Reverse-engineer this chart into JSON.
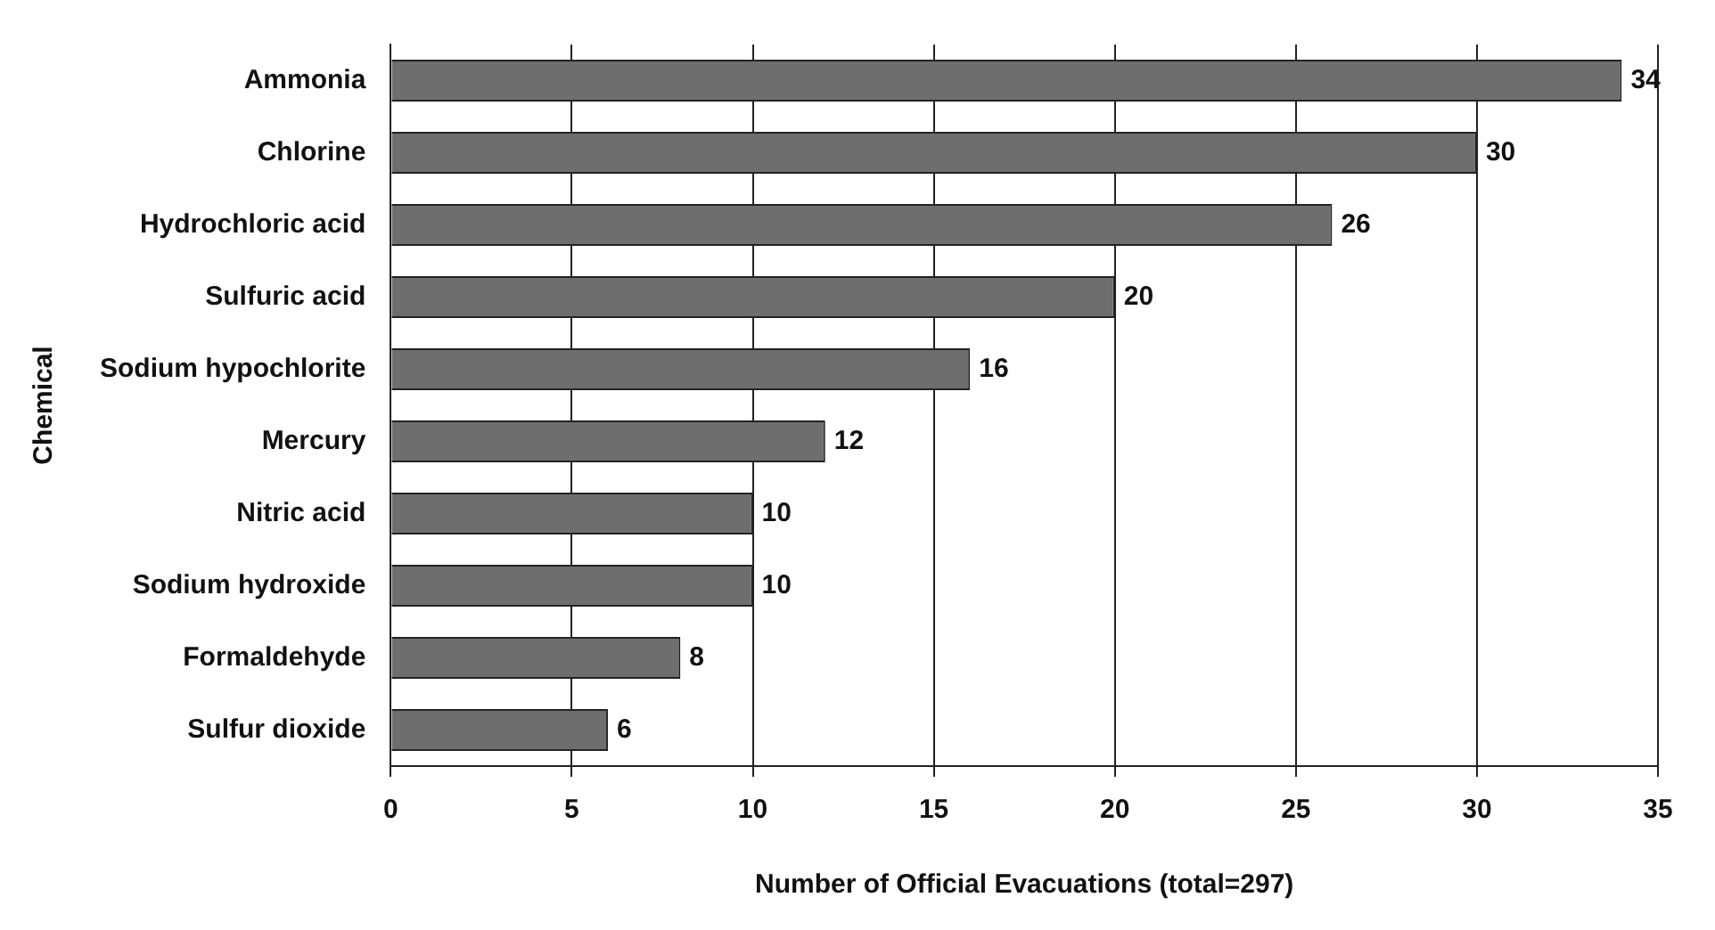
{
  "chart_data": {
    "type": "bar",
    "orientation": "horizontal",
    "xlabel": "Number of Official Evacuations (total=297)",
    "ylabel": "Chemical",
    "categories": [
      "Ammonia",
      "Chlorine",
      "Hydrochloric acid",
      "Sulfuric acid",
      "Sodium hypochlorite",
      "Mercury",
      "Nitric acid",
      "Sodium hydroxide",
      "Formaldehyde",
      "Sulfur dioxide"
    ],
    "values": [
      34,
      30,
      26,
      20,
      16,
      12,
      10,
      10,
      8,
      6
    ],
    "color": "#6e6e6e",
    "xlim": [
      0,
      35
    ],
    "xticks": [
      0,
      5,
      10,
      15,
      20,
      25,
      30,
      35
    ],
    "grid": "x",
    "data_labels": true,
    "legend": false
  }
}
